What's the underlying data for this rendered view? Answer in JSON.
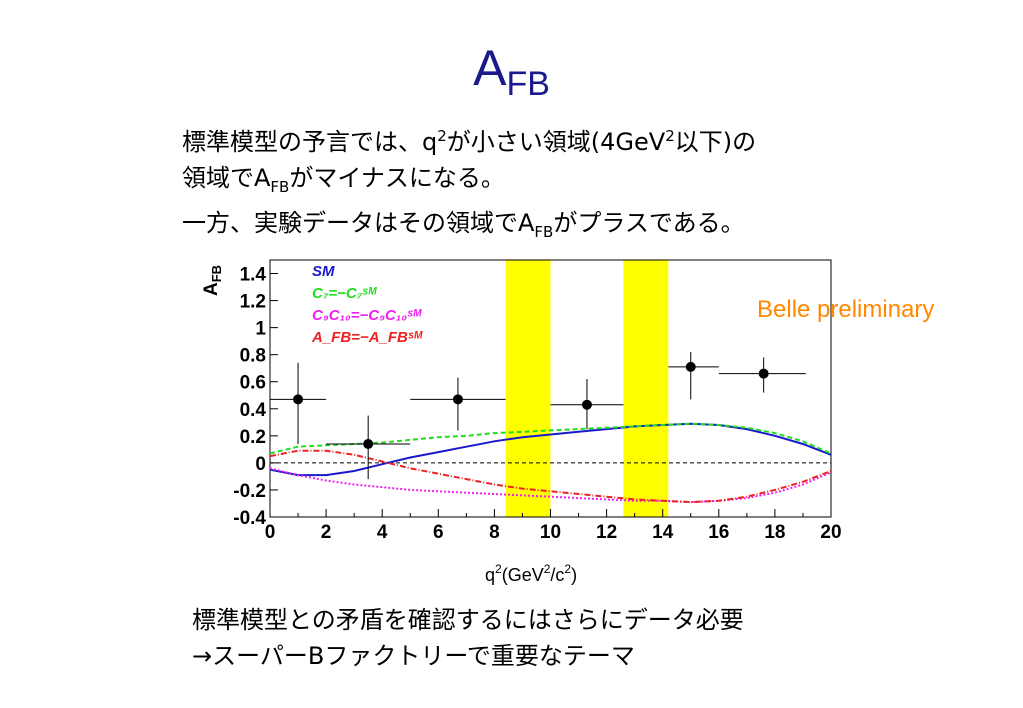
{
  "slide": {
    "title_main": "A",
    "title_sub": "FB",
    "para": {
      "l1_a": "標準模型の予言では、q",
      "l1_sup": "2",
      "l1_b": "が小さい領域(4GeV",
      "l1_sup2": "2",
      "l1_c": "以下)の",
      "l2_a": "領域でA",
      "l2_sub": "FB",
      "l2_b": "がマイナスになる。",
      "l3_a": "一方、実験データはその領域でA",
      "l3_sub": "FB",
      "l3_b": "がプラスである。"
    },
    "bottom": {
      "line1": "標準模型との矛盾を確認するにはさらにデータ必要",
      "line2": "→スーパーBファクトリーで重要なテーマ"
    },
    "belle": "Belle preliminary"
  },
  "chart_data": {
    "type": "scatter",
    "ylabel_main": "A",
    "ylabel_sub": "FB",
    "xlabel_main": "q",
    "xlabel_sup": "2",
    "xlabel_rest": "(GeV",
    "xlabel_sup2": "2",
    "xlabel_rest2": "/c",
    "xlabel_sup3": "2",
    "xlabel_end": ")",
    "xlim": [
      0,
      20
    ],
    "ylim": [
      -0.4,
      1.5
    ],
    "xticks": [
      0,
      2,
      4,
      6,
      8,
      10,
      12,
      14,
      16,
      18,
      20
    ],
    "yticks": [
      -0.4,
      -0.2,
      0,
      0.2,
      0.4,
      0.6,
      0.8,
      1,
      1.2,
      1.4
    ],
    "ytick_labels": [
      "-0.4",
      "-0.2",
      "0",
      "0.2",
      "0.4",
      "0.6",
      "0.8",
      "1",
      "1.2",
      "1.4"
    ],
    "veto_bands": [
      [
        8.4,
        10.0
      ],
      [
        12.6,
        14.2
      ]
    ],
    "band_color": "#ffff00",
    "points": [
      {
        "x": 1.0,
        "xlo": 0,
        "xhi": 2,
        "y": 0.47,
        "ylo": 0.14,
        "yhi": 0.74
      },
      {
        "x": 3.5,
        "xlo": 2,
        "xhi": 5,
        "y": 0.14,
        "ylo": -0.12,
        "yhi": 0.35
      },
      {
        "x": 6.7,
        "xlo": 5,
        "xhi": 8.4,
        "y": 0.47,
        "ylo": 0.24,
        "yhi": 0.63
      },
      {
        "x": 11.3,
        "xlo": 10,
        "xhi": 12.6,
        "y": 0.43,
        "ylo": 0.25,
        "yhi": 0.62
      },
      {
        "x": 15.0,
        "xlo": 14.2,
        "xhi": 16,
        "y": 0.71,
        "ylo": 0.47,
        "yhi": 0.82
      },
      {
        "x": 17.6,
        "xlo": 16,
        "xhi": 19.1,
        "y": 0.66,
        "ylo": 0.52,
        "yhi": 0.78
      }
    ],
    "series": [
      {
        "name": "SM",
        "color": "#1a1acc",
        "dash": "",
        "x": [
          0,
          1,
          2,
          3,
          4,
          5,
          6,
          7,
          8,
          9,
          10,
          11,
          12,
          13,
          14,
          15,
          16,
          17,
          18,
          19,
          20
        ],
        "y": [
          -0.05,
          -0.09,
          -0.09,
          -0.06,
          -0.01,
          0.04,
          0.08,
          0.12,
          0.16,
          0.19,
          0.21,
          0.23,
          0.25,
          0.27,
          0.28,
          0.29,
          0.28,
          0.25,
          0.2,
          0.14,
          0.06
        ]
      },
      {
        "name": "C₇=−C₇ˢᴹ",
        "color": "#22dd22",
        "dash": "5,3",
        "x": [
          0,
          1,
          2,
          3,
          4,
          5,
          6,
          7,
          8,
          9,
          10,
          11,
          12,
          13,
          14,
          15,
          16,
          17,
          18,
          19,
          20
        ],
        "y": [
          0.07,
          0.12,
          0.13,
          0.14,
          0.15,
          0.17,
          0.19,
          0.2,
          0.22,
          0.23,
          0.24,
          0.25,
          0.26,
          0.27,
          0.28,
          0.29,
          0.28,
          0.26,
          0.22,
          0.16,
          0.07
        ]
      },
      {
        "name": "C₉C₁₀=−C₉C₁₀ˢᴹ",
        "color": "#ee22ee",
        "dash": "2,2",
        "x": [
          0,
          1,
          2,
          3,
          4,
          5,
          6,
          7,
          8,
          9,
          10,
          11,
          12,
          13,
          14,
          15,
          16,
          17,
          18,
          19,
          20
        ],
        "y": [
          -0.04,
          -0.09,
          -0.13,
          -0.16,
          -0.18,
          -0.2,
          -0.21,
          -0.22,
          -0.23,
          -0.24,
          -0.25,
          -0.26,
          -0.27,
          -0.28,
          -0.28,
          -0.29,
          -0.28,
          -0.26,
          -0.22,
          -0.16,
          -0.07
        ]
      },
      {
        "name": "A_FB=−A_FBˢᴹ",
        "color": "#ee2222",
        "dash": "6,2,1,2",
        "x": [
          0,
          1,
          2,
          3,
          4,
          5,
          6,
          7,
          8,
          9,
          10,
          11,
          12,
          13,
          14,
          15,
          16,
          17,
          18,
          19,
          20
        ],
        "y": [
          0.05,
          0.09,
          0.09,
          0.06,
          0.01,
          -0.04,
          -0.08,
          -0.12,
          -0.16,
          -0.19,
          -0.21,
          -0.23,
          -0.25,
          -0.27,
          -0.28,
          -0.29,
          -0.28,
          -0.25,
          -0.2,
          -0.14,
          -0.06
        ]
      }
    ],
    "legend": [
      {
        "text": "SM",
        "color": "#1a1acc"
      },
      {
        "text": "C₇=−C₇ˢᴹ",
        "color": "#22dd22"
      },
      {
        "text": "C₉C₁₀=−C₉C₁₀ˢᴹ",
        "color": "#ee22ee"
      },
      {
        "text": "A_FB=−A_FBˢᴹ",
        "color": "#ee2222"
      }
    ],
    "legend_position": "top-left",
    "zero_line": true,
    "grid": false
  }
}
